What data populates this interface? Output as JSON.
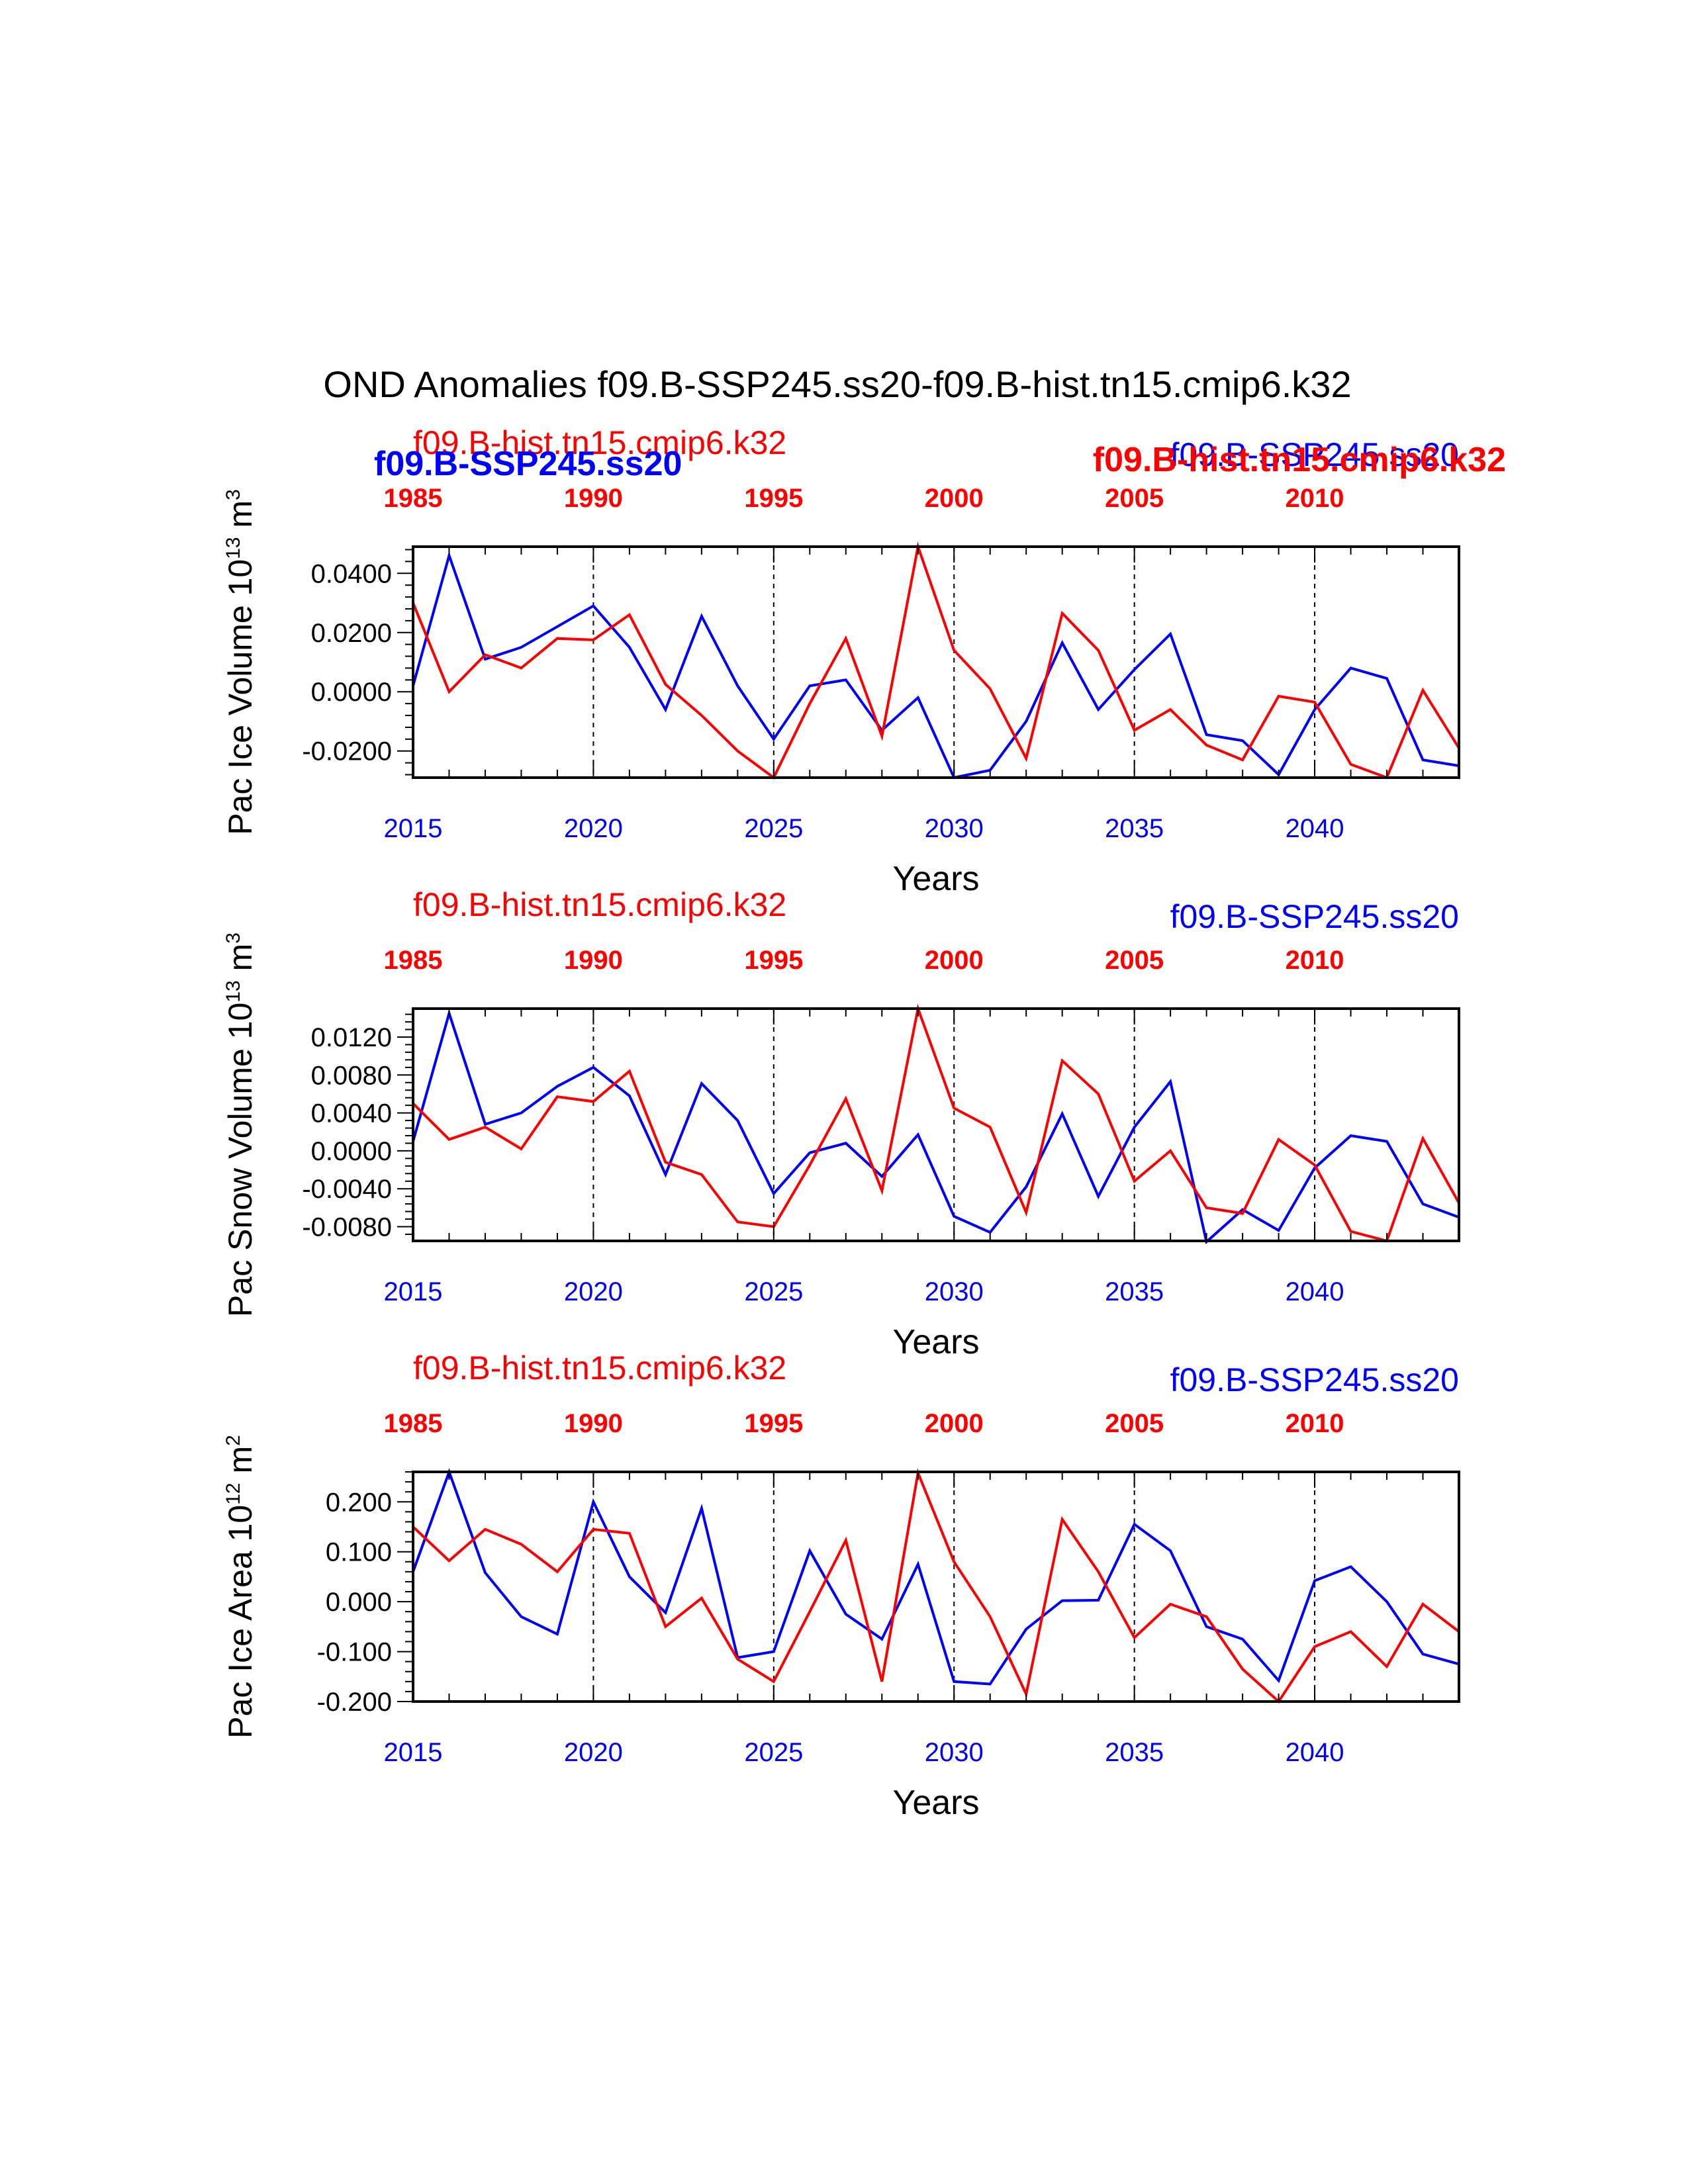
{
  "page_title": "OND Anomalies f09.B-SSP245.ss20-f09.B-hist.tn15.cmip6.k32",
  "colors": {
    "ssp": "#0000ff",
    "hist": "#ff0000",
    "axis": "#000000"
  },
  "bold_legend": {
    "ssp": "f09.B-SSP245.ss20",
    "hist": "f09.B-hist.tn15.cmip6.k32"
  },
  "chart_data": [
    {
      "type": "line",
      "ylabel_main": "Pac Ice Volume 10",
      "ylabel_exp": "13",
      "ylabel_unit": " m",
      "ylabel_unit_exp": "3",
      "xlabel": "Years",
      "top_label_hist": "f09.B-hist.tn15.cmip6.k32",
      "top_label_ssp": "f09.B-SSP245.ss20",
      "bottom_ticks": [
        "2015",
        "2020",
        "2025",
        "2030",
        "2035",
        "2040"
      ],
      "top_ticks": [
        "1985",
        "1990",
        "1995",
        "2000",
        "2005",
        "2010"
      ],
      "ytick_labels": [
        "0.0400",
        "0.0200",
        "0.0000",
        "-0.0200"
      ],
      "yticks": [
        0.04,
        0.02,
        0.0,
        -0.02
      ],
      "ylim": [
        -0.029,
        0.049
      ],
      "xlim": [
        2015,
        2044
      ],
      "series": [
        {
          "name": "f09.B-SSP245.ss20",
          "color": "#0000ff",
          "x": [
            2015,
            2016,
            2017,
            2018,
            2019,
            2020,
            2021,
            2022,
            2023,
            2024,
            2025,
            2026,
            2027,
            2028,
            2029,
            2030,
            2031,
            2032,
            2033,
            2034,
            2035,
            2036,
            2037,
            2038,
            2039,
            2040,
            2041,
            2042,
            2043,
            2044
          ],
          "values": [
            0.002,
            0.046,
            0.011,
            0.015,
            0.022,
            0.029,
            0.015,
            -0.006,
            0.0255,
            0.002,
            -0.016,
            0.002,
            0.004,
            -0.013,
            -0.002,
            -0.029,
            -0.0265,
            -0.01,
            0.0165,
            -0.006,
            0.0075,
            0.0195,
            -0.0145,
            -0.0165,
            -0.028,
            -0.006,
            0.008,
            0.0045,
            -0.023,
            -0.025
          ]
        },
        {
          "name": "f09.B-hist.tn15.cmip6.k32",
          "color": "#ff0000",
          "x": [
            2015,
            2016,
            2017,
            2018,
            2019,
            2020,
            2021,
            2022,
            2023,
            2024,
            2025,
            2026,
            2027,
            2028,
            2029,
            2030,
            2031,
            2032,
            2033,
            2034,
            2035,
            2036,
            2037,
            2038,
            2039,
            2040,
            2041,
            2042,
            2043,
            2044
          ],
          "values": [
            0.03,
            0.0,
            0.0125,
            0.008,
            0.018,
            0.0175,
            0.026,
            0.0025,
            -0.008,
            -0.02,
            -0.029,
            -0.004,
            0.018,
            -0.015,
            0.049,
            0.014,
            0.001,
            -0.0225,
            0.0265,
            0.014,
            -0.013,
            -0.006,
            -0.018,
            -0.023,
            -0.0015,
            -0.0035,
            -0.0245,
            -0.029,
            0.0005,
            -0.019
          ]
        }
      ]
    },
    {
      "type": "line",
      "ylabel_main": "Pac Snow Volume 10",
      "ylabel_exp": "13",
      "ylabel_unit": " m",
      "ylabel_unit_exp": "3",
      "xlabel": "Years",
      "top_label_hist": "f09.B-hist.tn15.cmip6.k32",
      "top_label_ssp": "f09.B-SSP245.ss20",
      "bottom_ticks": [
        "2015",
        "2020",
        "2025",
        "2030",
        "2035",
        "2040"
      ],
      "top_ticks": [
        "1985",
        "1990",
        "1995",
        "2000",
        "2005",
        "2010"
      ],
      "ytick_labels": [
        "0.0120",
        "0.0080",
        "0.0040",
        "0.0000",
        "-0.0040",
        "-0.0080"
      ],
      "yticks": [
        0.012,
        0.008,
        0.004,
        0.0,
        -0.004,
        -0.008
      ],
      "ylim": [
        -0.0095,
        0.015
      ],
      "xlim": [
        2015,
        2044
      ],
      "series": [
        {
          "name": "f09.B-SSP245.ss20",
          "color": "#0000ff",
          "x": [
            2015,
            2016,
            2017,
            2018,
            2019,
            2020,
            2021,
            2022,
            2023,
            2024,
            2025,
            2026,
            2027,
            2028,
            2029,
            2030,
            2031,
            2032,
            2033,
            2034,
            2035,
            2036,
            2037,
            2038,
            2039,
            2040,
            2041,
            2042,
            2043,
            2044
          ],
          "values": [
            0.001,
            0.0145,
            0.0028,
            0.004,
            0.0068,
            0.0088,
            0.0058,
            -0.0025,
            0.0071,
            0.0032,
            -0.0045,
            -0.0002,
            0.0008,
            -0.0027,
            0.0017,
            -0.0069,
            -0.0086,
            -0.0038,
            0.0039,
            -0.0048,
            0.0025,
            0.0073,
            -0.0096,
            -0.0062,
            -0.0084,
            -0.0018,
            0.0016,
            0.001,
            -0.0056,
            -0.007
          ]
        },
        {
          "name": "f09.B-hist.tn15.cmip6.k32",
          "color": "#ff0000",
          "x": [
            2015,
            2016,
            2017,
            2018,
            2019,
            2020,
            2021,
            2022,
            2023,
            2024,
            2025,
            2026,
            2027,
            2028,
            2029,
            2030,
            2031,
            2032,
            2033,
            2034,
            2035,
            2036,
            2037,
            2038,
            2039,
            2040,
            2041,
            2042,
            2043,
            2044
          ],
          "values": [
            0.005,
            0.0012,
            0.0025,
            0.0002,
            0.0057,
            0.0052,
            0.0084,
            -0.0012,
            -0.0025,
            -0.0075,
            -0.008,
            -0.0015,
            0.0055,
            -0.0042,
            0.015,
            0.0045,
            0.0025,
            -0.0065,
            0.0095,
            0.006,
            -0.0032,
            0.0,
            -0.006,
            -0.0066,
            0.0012,
            -0.0015,
            -0.0085,
            -0.0095,
            0.0013,
            -0.0055
          ]
        }
      ]
    },
    {
      "type": "line",
      "ylabel_main": "Pac Ice Area 10",
      "ylabel_exp": "12",
      "ylabel_unit": " m",
      "ylabel_unit_exp": "2",
      "xlabel": "Years",
      "top_label_hist": "f09.B-hist.tn15.cmip6.k32",
      "top_label_ssp": "f09.B-SSP245.ss20",
      "bottom_ticks": [
        "2015",
        "2020",
        "2025",
        "2030",
        "2035",
        "2040"
      ],
      "top_ticks": [
        "1985",
        "1990",
        "1995",
        "2000",
        "2005",
        "2010"
      ],
      "ytick_labels": [
        "0.200",
        "0.100",
        "0.000",
        "-0.100",
        "-0.200"
      ],
      "yticks": [
        0.2,
        0.1,
        0.0,
        -0.1,
        -0.2
      ],
      "ylim": [
        -0.2,
        0.26
      ],
      "xlim": [
        2015,
        2044
      ],
      "series": [
        {
          "name": "f09.B-SSP245.ss20",
          "color": "#0000ff",
          "x": [
            2015,
            2016,
            2017,
            2018,
            2019,
            2020,
            2021,
            2022,
            2023,
            2024,
            2025,
            2026,
            2027,
            2028,
            2029,
            2030,
            2031,
            2032,
            2033,
            2034,
            2035,
            2036,
            2037,
            2038,
            2039,
            2040,
            2041,
            2042,
            2043,
            2044
          ],
          "values": [
            0.06,
            0.26,
            0.058,
            -0.03,
            -0.065,
            0.2,
            0.05,
            -0.022,
            0.187,
            -0.112,
            -0.1,
            0.102,
            -0.025,
            -0.075,
            0.075,
            -0.16,
            -0.165,
            -0.055,
            0.002,
            0.003,
            0.155,
            0.102,
            -0.05,
            -0.075,
            -0.158,
            0.042,
            0.07,
            0.0,
            -0.105,
            -0.125
          ]
        },
        {
          "name": "f09.B-hist.tn15.cmip6.k32",
          "color": "#ff0000",
          "x": [
            2015,
            2016,
            2017,
            2018,
            2019,
            2020,
            2021,
            2022,
            2023,
            2024,
            2025,
            2026,
            2027,
            2028,
            2029,
            2030,
            2031,
            2032,
            2033,
            2034,
            2035,
            2036,
            2037,
            2038,
            2039,
            2040,
            2041,
            2042,
            2043,
            2044
          ],
          "values": [
            0.15,
            0.082,
            0.145,
            0.115,
            0.06,
            0.145,
            0.137,
            -0.05,
            0.007,
            -0.115,
            -0.16,
            -0.02,
            0.123,
            -0.16,
            0.258,
            0.08,
            -0.03,
            -0.185,
            0.165,
            0.06,
            -0.072,
            -0.005,
            -0.03,
            -0.135,
            -0.2,
            -0.09,
            -0.06,
            -0.13,
            -0.005,
            -0.06
          ]
        }
      ]
    }
  ]
}
